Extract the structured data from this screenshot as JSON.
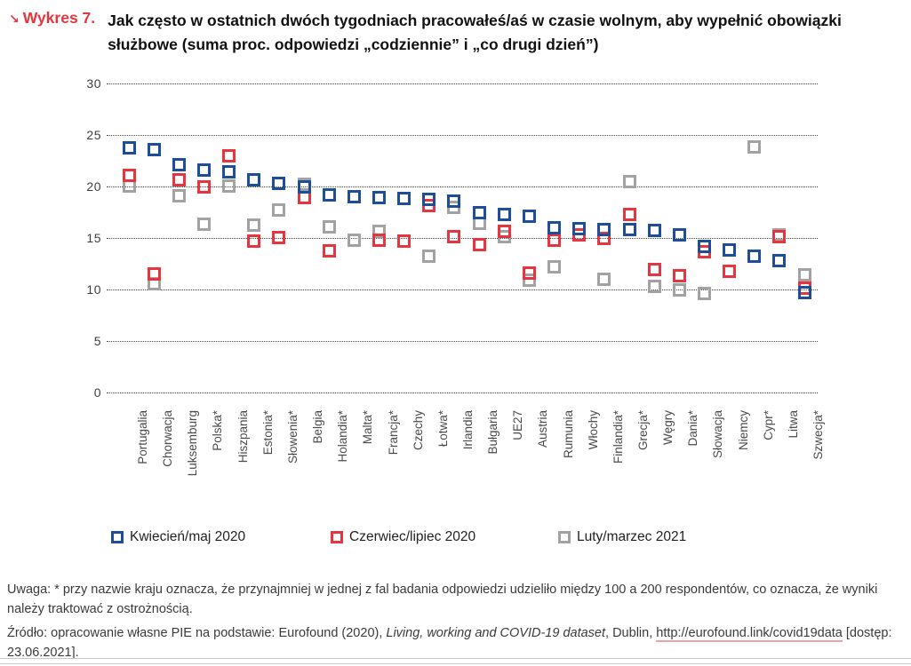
{
  "header": {
    "arrow_icon": "↘",
    "figure_label": "Wykres 7.",
    "title": "Jak często w ostatnich dwóch tygodniach pracowałeś/aś w czasie wolnym, aby wypełnić obowiązki służbowe (suma proc. odpowiedzi „codziennie” i „co drugi dzień”)"
  },
  "chart_data": {
    "type": "scatter",
    "marker_shape": "hollow-square",
    "categories": [
      "Portugalia",
      "Chorwacja",
      "Luksemburg",
      "Polska*",
      "Hiszpania",
      "Estonia*",
      "Słowenia*",
      "Belgia",
      "Holandia*",
      "Malta*",
      "Francja*",
      "Czechy",
      "Łotwa*",
      "Irlandia",
      "Bułgaria",
      "UE27",
      "Austria",
      "Rumunia",
      "Włochy",
      "Finlandia*",
      "Grecja*",
      "Węgry",
      "Dania*",
      "Słowacja",
      "Niemcy",
      "Cypr*",
      "Litwa",
      "Szwecja*"
    ],
    "series": [
      {
        "name": "Kwiecień/maj 2020",
        "color": "#1e4d9b",
        "values": [
          23.7,
          23.6,
          22.1,
          21.6,
          21.4,
          20.6,
          20.3,
          19.9,
          19.2,
          19.0,
          18.9,
          18.8,
          18.7,
          18.6,
          17.4,
          17.3,
          17.1,
          16.0,
          15.9,
          15.8,
          15.8,
          15.7,
          15.3,
          14.2,
          13.8,
          13.2,
          12.8,
          9.7
        ]
      },
      {
        "name": "Czerwiec/lipiec 2020",
        "color": "#e6353f",
        "values": [
          21.1,
          11.5,
          20.6,
          19.9,
          23.0,
          14.7,
          15.0,
          18.9,
          13.7,
          null,
          14.8,
          14.7,
          18.1,
          15.1,
          14.3,
          15.6,
          11.6,
          14.8,
          15.3,
          14.9,
          17.3,
          11.9,
          11.3,
          13.6,
          11.7,
          null,
          15.1,
          10.1
        ]
      },
      {
        "name": "Luty/marzec 2021",
        "color": "#a2a2a2",
        "values": [
          20.0,
          10.5,
          19.1,
          16.3,
          20.0,
          16.2,
          17.7,
          20.2,
          16.1,
          14.8,
          15.6,
          null,
          13.2,
          18.0,
          16.4,
          15.1,
          10.9,
          12.2,
          null,
          11.0,
          20.5,
          10.3,
          9.9,
          9.6,
          null,
          23.8,
          15.3,
          11.4
        ]
      }
    ],
    "ylim": [
      0,
      30
    ],
    "yticks": [
      0,
      5,
      10,
      15,
      20,
      25,
      30
    ],
    "grid": "horizontal-dotted",
    "legend_position": "bottom"
  },
  "notes": {
    "uwaga": "Uwaga: * przy nazwie kraju oznacza, że przynajmniej w jednej z fal badania odpowiedzi udzieliło między 100 a 200 respondentów, co oznacza, że wyniki należy traktować z ostrożnością."
  },
  "source": {
    "prefix": "Źródło: opracowanie własne PIE na podstawie: Eurofound (2020), ",
    "dataset_italic": "Living, working and COVID-19 dataset",
    "middle": ", Dublin, ",
    "link_part1": "http://eurofound.link/",
    "link_part2": "covid19data",
    "suffix": " [dostęp: 23.06.2021]."
  }
}
